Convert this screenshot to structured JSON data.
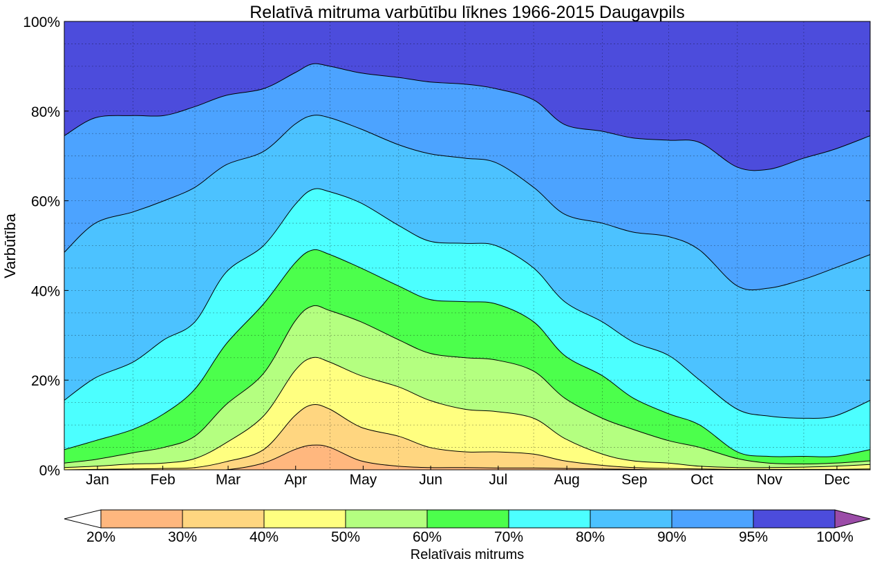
{
  "chart_data": {
    "type": "area",
    "title": "Relatīvā mitruma varbūtību līknes 1966-2015 Daugavpils",
    "ylabel": "Varbūtība",
    "xlabel": "",
    "ylim": [
      0,
      100
    ],
    "y_ticks": [
      "0%",
      "20%",
      "40%",
      "60%",
      "80%",
      "100%"
    ],
    "months": [
      "Jan",
      "Feb",
      "Mar",
      "Apr",
      "May",
      "Jun",
      "Jul",
      "Aug",
      "Sep",
      "Oct",
      "Nov",
      "Dec"
    ],
    "x_day_of_year": [
      1,
      15,
      32,
      46,
      60,
      74,
      91,
      105,
      113,
      121,
      135,
      152,
      166,
      182,
      196,
      213,
      227,
      244,
      258,
      274,
      288,
      305,
      319,
      335,
      349,
      365
    ],
    "grid": true,
    "stacking": "cumulative probability curves (bands between thresholds)",
    "series": [
      {
        "threshold": "20%",
        "values": [
          0,
          0,
          0,
          0,
          0,
          0,
          0,
          0,
          0,
          0,
          0,
          0,
          0,
          0,
          0,
          0,
          0,
          0,
          0,
          0,
          0,
          0,
          0,
          0,
          0,
          0
        ]
      },
      {
        "threshold": "30%",
        "values": [
          0,
          0,
          0,
          0,
          0,
          0,
          1.5,
          4.5,
          5.5,
          5,
          2,
          0.8,
          0.5,
          0.5,
          0.4,
          0.4,
          0.3,
          0.2,
          0.1,
          0,
          0,
          0,
          0,
          0,
          0,
          0
        ]
      },
      {
        "threshold": "40%",
        "values": [
          0,
          0.1,
          0.2,
          0.3,
          0.5,
          1.8,
          4.5,
          12,
          14.5,
          13.5,
          9.5,
          7.5,
          5,
          4,
          4,
          3.5,
          2,
          1,
          0.5,
          0.3,
          0.2,
          0.1,
          0.1,
          0.1,
          0.1,
          0.2
        ]
      },
      {
        "threshold": "50%",
        "values": [
          0.5,
          0.8,
          1.3,
          1.5,
          2.5,
          6,
          12,
          22,
          25,
          24,
          21,
          18.5,
          15.5,
          13.5,
          13,
          11.5,
          7,
          3.5,
          2,
          1.5,
          0.8,
          0.5,
          0.5,
          0.6,
          0.8,
          1.2
        ]
      },
      {
        "threshold": "60%",
        "values": [
          1.5,
          2.3,
          3.8,
          5,
          7.5,
          14.5,
          21.5,
          33,
          36.5,
          35.5,
          33,
          29,
          26,
          25,
          24.5,
          22,
          16,
          11.5,
          9,
          6.5,
          5,
          2.5,
          1.5,
          1.3,
          1.5,
          2
        ]
      },
      {
        "threshold": "70%",
        "values": [
          4.5,
          6.5,
          9,
          12.5,
          18,
          28,
          37,
          46,
          49,
          48,
          45,
          41,
          38,
          37.5,
          37,
          33,
          25.5,
          21,
          16,
          12.5,
          10,
          4,
          3,
          3,
          3,
          4.5
        ]
      },
      {
        "threshold": "80%",
        "values": [
          15.5,
          20.5,
          24,
          29,
          33,
          44,
          50,
          59,
          62.5,
          62,
          59.5,
          54.5,
          51,
          50.5,
          50,
          45,
          37.5,
          33,
          28.5,
          25.5,
          20,
          13.5,
          12,
          11.5,
          12,
          15.5
        ]
      },
      {
        "threshold": "90%",
        "values": [
          48.5,
          55,
          57.5,
          60,
          63,
          68,
          71,
          77,
          79,
          78.5,
          76,
          72.5,
          70.5,
          69.5,
          68.5,
          63,
          57,
          55,
          53,
          52,
          49,
          41,
          40.5,
          42.5,
          45,
          48
        ]
      },
      {
        "threshold": "95%",
        "values": [
          74.5,
          78.5,
          79,
          79,
          81,
          83.5,
          85,
          88.5,
          90.5,
          90,
          88.5,
          87.5,
          86.5,
          86,
          85,
          82.5,
          77,
          75.5,
          74,
          73.5,
          73,
          67.5,
          67,
          69.5,
          71.5,
          74.5
        ]
      }
    ],
    "bands": [
      {
        "from": "20%",
        "to": "30%",
        "color": "#FFB77E"
      },
      {
        "from": "30%",
        "to": "40%",
        "color": "#FFD680"
      },
      {
        "from": "40%",
        "to": "50%",
        "color": "#FFFF80"
      },
      {
        "from": "50%",
        "to": "60%",
        "color": "#B4FF80"
      },
      {
        "from": "60%",
        "to": "70%",
        "color": "#4CFF4C"
      },
      {
        "from": "70%",
        "to": "80%",
        "color": "#4CFFFF"
      },
      {
        "from": "80%",
        "to": "90%",
        "color": "#4CC2FF"
      },
      {
        "from": "90%",
        "to": "95%",
        "color": "#4CA3FF"
      },
      {
        "from": "95%",
        "to": "100%",
        "color": "#4C4CDC"
      }
    ],
    "colorbar": {
      "label": "Relatīvais mitrums",
      "ticks": [
        "20%",
        "30%",
        "40%",
        "50%",
        "60%",
        "70%",
        "80%",
        "90%",
        "95%",
        "100%"
      ],
      "under_color": "#FFFFFF",
      "over_color": "#9B4CA8"
    }
  }
}
